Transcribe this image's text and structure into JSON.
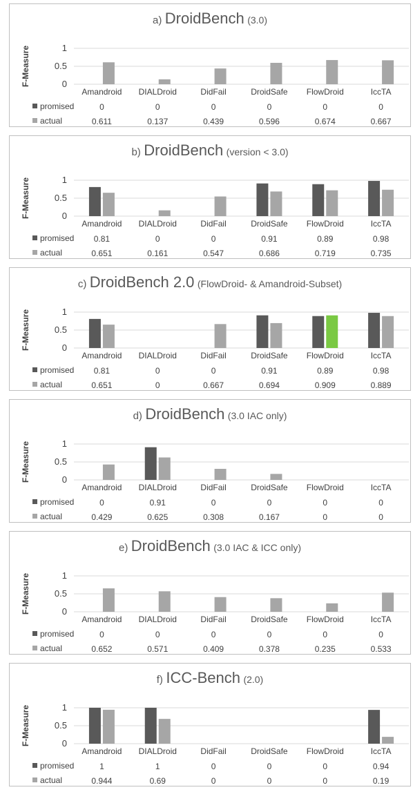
{
  "y_axis_label": "F-Measure",
  "yticks": [
    "1",
    "0.5",
    "0"
  ],
  "categories": [
    "Amandroid",
    "DIALDroid",
    "DidFail",
    "DroidSafe",
    "FlowDroid",
    "IccTA"
  ],
  "series_names": [
    "promised",
    "actual"
  ],
  "colors": {
    "promised": "#595959",
    "actual": "#a6a6a6",
    "highlight": "#7ac943",
    "grid": "#d9d9d9",
    "border": "#bfbfbf"
  },
  "panels": [
    {
      "letter": "a)",
      "name": "DroidBench",
      "subtitle": "(3.0)"
    },
    {
      "letter": "b)",
      "name": "DroidBench",
      "subtitle": "(version < 3.0)"
    },
    {
      "letter": "c)",
      "name": "DroidBench 2.0",
      "subtitle": "(FlowDroid- & Amandroid-Subset)"
    },
    {
      "letter": "d)",
      "name": "DroidBench",
      "subtitle": "(3.0 IAC only)"
    },
    {
      "letter": "e)",
      "name": "DroidBench",
      "subtitle": "(3.0 IAC & ICC only)"
    },
    {
      "letter": "f)",
      "name": "ICC-Bench",
      "subtitle": "(2.0)"
    }
  ],
  "chart_data": [
    {
      "type": "bar",
      "title": "a) DroidBench (3.0)",
      "ylabel": "F-Measure",
      "ylim": [
        0,
        1
      ],
      "grid": true,
      "legend": "table below",
      "categories": [
        "Amandroid",
        "DIALDroid",
        "DidFail",
        "DroidSafe",
        "FlowDroid",
        "IccTA"
      ],
      "series": [
        {
          "name": "promised",
          "values": [
            0,
            0,
            0,
            0,
            0,
            0
          ],
          "labels": [
            "0",
            "0",
            "0",
            "0",
            "0",
            "0"
          ]
        },
        {
          "name": "actual",
          "values": [
            0.611,
            0.137,
            0.439,
            0.596,
            0.674,
            0.667
          ],
          "labels": [
            "0.611",
            "0.137",
            "0.439",
            "0.596",
            "0.674",
            "0.667"
          ]
        }
      ]
    },
    {
      "type": "bar",
      "title": "b) DroidBench (version < 3.0)",
      "ylabel": "F-Measure",
      "ylim": [
        0,
        1
      ],
      "grid": true,
      "legend": "table below",
      "categories": [
        "Amandroid",
        "DIALDroid",
        "DidFail",
        "DroidSafe",
        "FlowDroid",
        "IccTA"
      ],
      "series": [
        {
          "name": "promised",
          "values": [
            0.81,
            0,
            0,
            0.91,
            0.89,
            0.98
          ],
          "labels": [
            "0.81",
            "0",
            "0",
            "0.91",
            "0.89",
            "0.98"
          ]
        },
        {
          "name": "actual",
          "values": [
            0.651,
            0.161,
            0.547,
            0.686,
            0.719,
            0.735
          ],
          "labels": [
            "0.651",
            "0.161",
            "0.547",
            "0.686",
            "0.719",
            "0.735"
          ]
        }
      ]
    },
    {
      "type": "bar",
      "title": "c) DroidBench 2.0 (FlowDroid- & Amandroid-Subset)",
      "ylabel": "F-Measure",
      "ylim": [
        0,
        1
      ],
      "grid": true,
      "legend": "table below",
      "categories": [
        "Amandroid",
        "DIALDroid",
        "DidFail",
        "DroidSafe",
        "FlowDroid",
        "IccTA"
      ],
      "series": [
        {
          "name": "promised",
          "values": [
            0.81,
            0,
            0,
            0.91,
            0.89,
            0.98
          ],
          "labels": [
            "0.81",
            "0",
            "0",
            "0.91",
            "0.89",
            "0.98"
          ]
        },
        {
          "name": "actual",
          "values": [
            0.651,
            0,
            0.667,
            0.694,
            0.909,
            0.889
          ],
          "labels": [
            "0.651",
            "0",
            "0.667",
            "0.694",
            "0.909",
            "0.889"
          ]
        }
      ],
      "highlight": {
        "series": "actual",
        "category": "FlowDroid",
        "color": "#7ac943"
      }
    },
    {
      "type": "bar",
      "title": "d) DroidBench (3.0 IAC only)",
      "ylabel": "F-Measure",
      "ylim": [
        0,
        1
      ],
      "grid": true,
      "legend": "table below",
      "categories": [
        "Amandroid",
        "DIALDroid",
        "DidFail",
        "DroidSafe",
        "FlowDroid",
        "IccTA"
      ],
      "series": [
        {
          "name": "promised",
          "values": [
            0,
            0.91,
            0,
            0,
            0,
            0
          ],
          "labels": [
            "0",
            "0.91",
            "0",
            "0",
            "0",
            "0"
          ]
        },
        {
          "name": "actual",
          "values": [
            0.429,
            0.625,
            0.308,
            0.167,
            0,
            0
          ],
          "labels": [
            "0.429",
            "0.625",
            "0.308",
            "0.167",
            "0",
            "0"
          ]
        }
      ]
    },
    {
      "type": "bar",
      "title": "e) DroidBench (3.0 IAC & ICC only)",
      "ylabel": "F-Measure",
      "ylim": [
        0,
        1
      ],
      "grid": true,
      "legend": "table below",
      "categories": [
        "Amandroid",
        "DIALDroid",
        "DidFail",
        "DroidSafe",
        "FlowDroid",
        "IccTA"
      ],
      "series": [
        {
          "name": "promised",
          "values": [
            0,
            0,
            0,
            0,
            0,
            0
          ],
          "labels": [
            "0",
            "0",
            "0",
            "0",
            "0",
            "0"
          ]
        },
        {
          "name": "actual",
          "values": [
            0.652,
            0.571,
            0.409,
            0.378,
            0.235,
            0.533
          ],
          "labels": [
            "0.652",
            "0.571",
            "0.409",
            "0.378",
            "0.235",
            "0.533"
          ]
        }
      ]
    },
    {
      "type": "bar",
      "title": "f) ICC-Bench (2.0)",
      "ylabel": "F-Measure",
      "ylim": [
        0,
        1
      ],
      "grid": true,
      "legend": "table below",
      "categories": [
        "Amandroid",
        "DIALDroid",
        "DidFail",
        "DroidSafe",
        "FlowDroid",
        "IccTA"
      ],
      "series": [
        {
          "name": "promised",
          "values": [
            1,
            1,
            0,
            0,
            0,
            0.94
          ],
          "labels": [
            "1",
            "1",
            "0",
            "0",
            "0",
            "0.94"
          ]
        },
        {
          "name": "actual",
          "values": [
            0.944,
            0.69,
            0,
            0,
            0,
            0.19
          ],
          "labels": [
            "0.944",
            "0.69",
            "0",
            "0",
            "0",
            "0.19"
          ]
        }
      ]
    }
  ]
}
